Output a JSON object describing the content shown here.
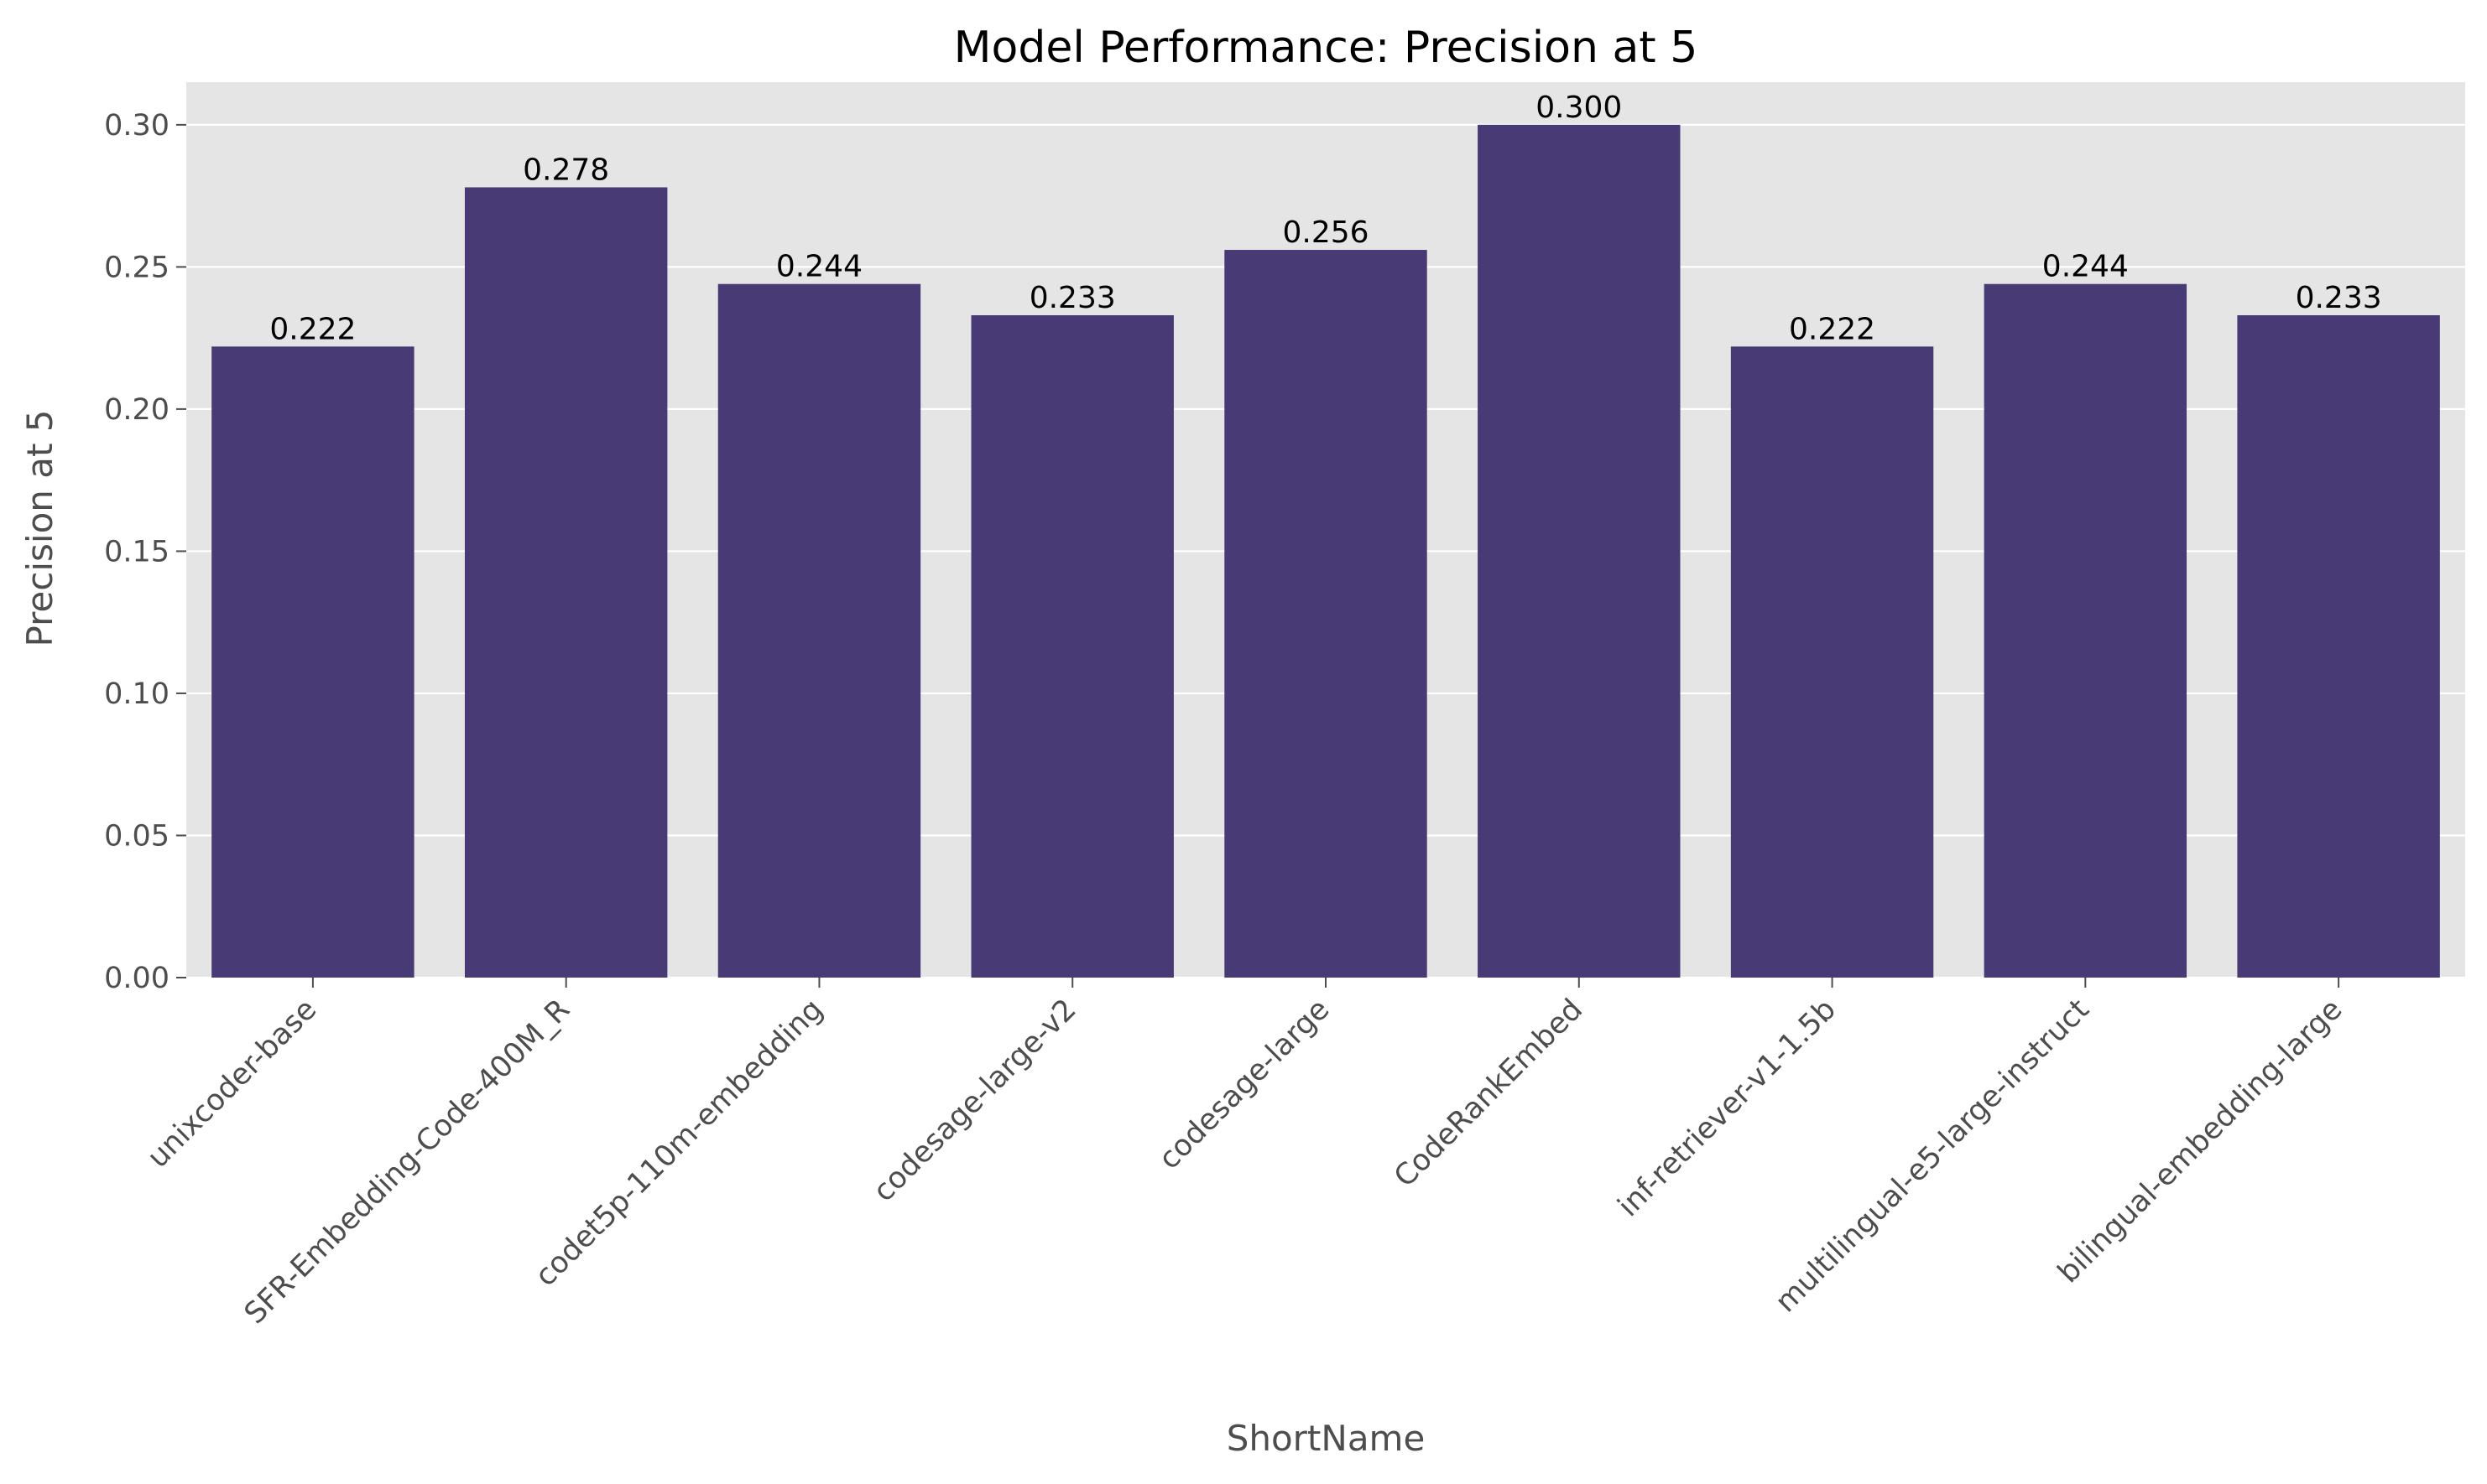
{
  "chart_data": {
    "type": "bar",
    "title": "Model Performance: Precision at 5",
    "xlabel": "ShortName",
    "ylabel": "Precision at 5",
    "categories": [
      "unixcoder-base",
      "SFR-Embedding-Code-400M_R",
      "codet5p-110m-embedding",
      "codesage-large-v2",
      "codesage-large",
      "CodeRankEmbed",
      "inf-retriever-v1-1.5b",
      "multilingual-e5-large-instruct",
      "bilingual-embedding-large"
    ],
    "values": [
      0.222,
      0.278,
      0.244,
      0.233,
      0.256,
      0.3,
      0.222,
      0.244,
      0.233
    ],
    "data_labels": [
      "0.222",
      "0.278",
      "0.244",
      "0.233",
      "0.256",
      "0.300",
      "0.222",
      "0.244",
      "0.233"
    ],
    "ylim": [
      0,
      0.315
    ],
    "yticks": [
      0,
      0.05,
      0.1,
      0.15,
      0.2,
      0.25,
      0.3
    ],
    "ytick_labels": [
      "0.00",
      "0.05",
      "0.10",
      "0.15",
      "0.20",
      "0.25",
      "0.30"
    ],
    "grid": true,
    "colors": {
      "bar": "#483a75",
      "background": "#e5e5e5",
      "grid": "#ffffff"
    }
  }
}
